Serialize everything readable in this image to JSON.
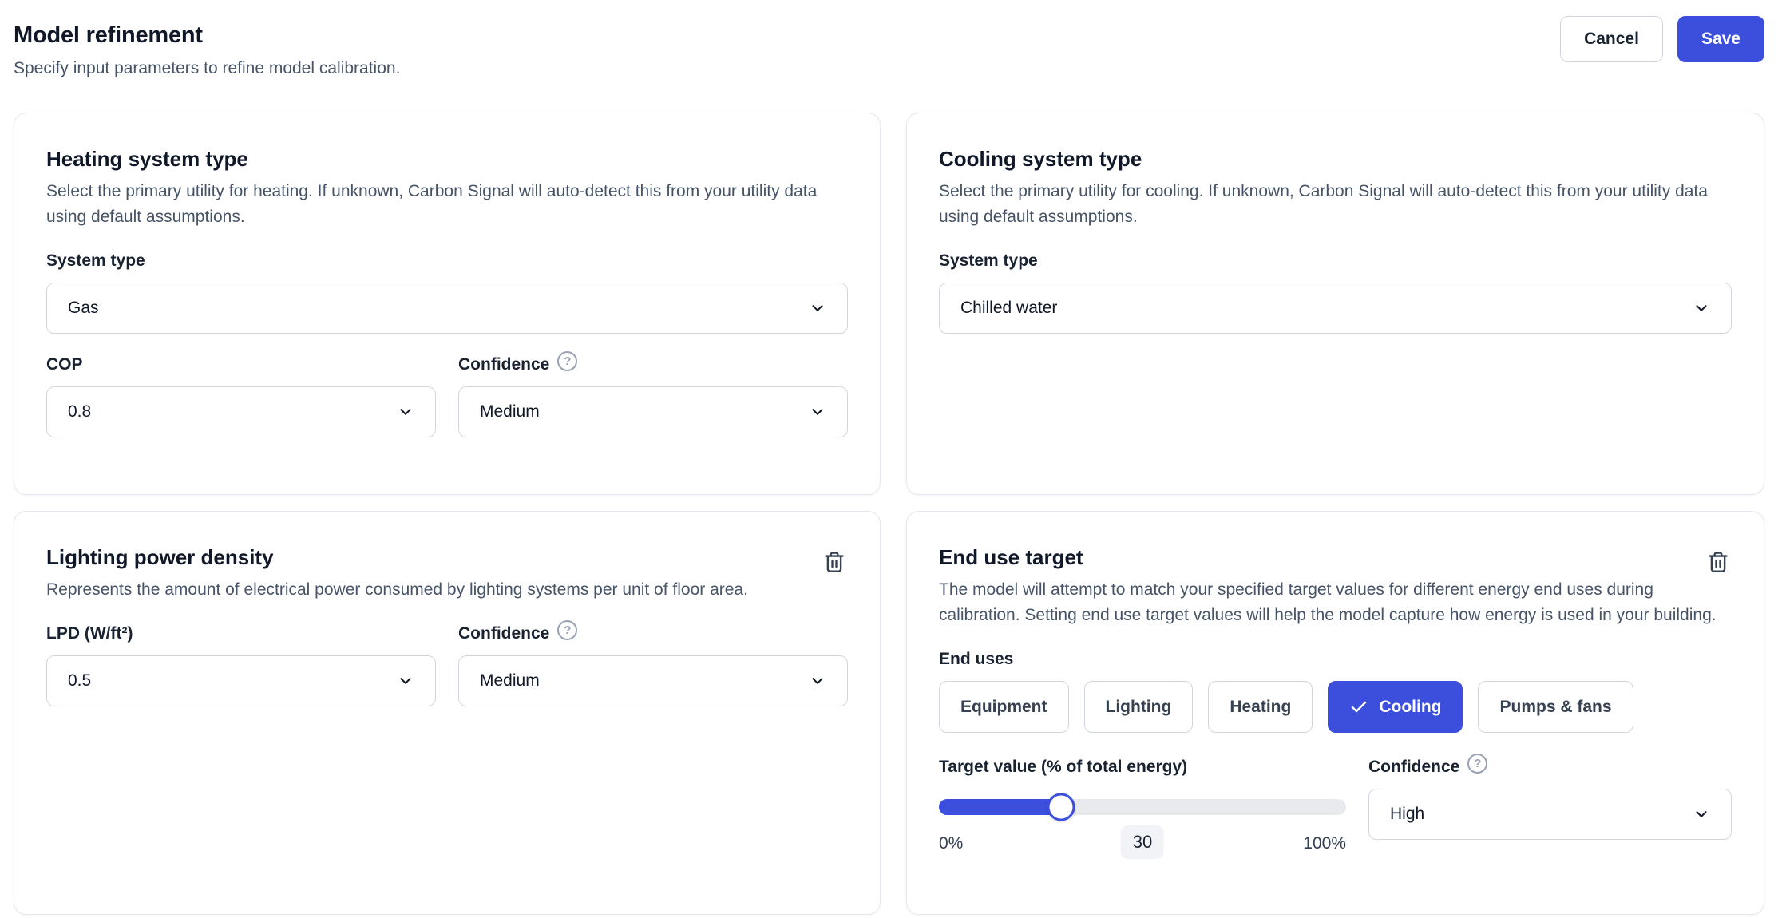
{
  "header": {
    "title": "Model refinement",
    "subtitle": "Specify input parameters to refine model calibration.",
    "actions": {
      "cancel": "Cancel",
      "save": "Save"
    }
  },
  "colors": {
    "accent": "#3b4edc"
  },
  "icons": {
    "help_glyph": "?",
    "chevron": "chevron-down",
    "trash": "trash-can",
    "check": "checkmark"
  },
  "cards": {
    "heating": {
      "title": "Heating system type",
      "description": "Select the primary utility for heating. If unknown, Carbon Signal will auto-detect this from your utility data using default assumptions.",
      "system_type": {
        "label": "System type",
        "value": "Gas"
      },
      "cop": {
        "label": "COP",
        "value": "0.8"
      },
      "confidence": {
        "label": "Confidence",
        "value": "Medium"
      }
    },
    "cooling": {
      "title": "Cooling system type",
      "description": "Select the primary utility for cooling. If unknown, Carbon Signal will auto-detect this from your utility data using default assumptions.",
      "system_type": {
        "label": "System type",
        "value": "Chilled water"
      }
    },
    "lighting": {
      "title": "Lighting power density",
      "description": "Represents the amount of electrical power consumed by lighting systems per unit of floor area.",
      "lpd": {
        "label": "LPD (W/ft²)",
        "value": "0.5"
      },
      "confidence": {
        "label": "Confidence",
        "value": "Medium"
      }
    },
    "end_use": {
      "title": "End use target",
      "description": "The model will attempt to match your specified target values for different energy end uses during calibration. Setting end use target values will help the model capture how energy is used in your building.",
      "end_uses_label": "End uses",
      "options": [
        {
          "label": "Equipment",
          "selected": false
        },
        {
          "label": "Lighting",
          "selected": false
        },
        {
          "label": "Heating",
          "selected": false
        },
        {
          "label": "Cooling",
          "selected": true
        },
        {
          "label": "Pumps & fans",
          "selected": false
        }
      ],
      "target": {
        "label": "Target value (% of total energy)",
        "min_label": "0%",
        "max_label": "100%",
        "value": 30,
        "value_label": "30"
      },
      "confidence": {
        "label": "Confidence",
        "value": "High"
      }
    }
  }
}
